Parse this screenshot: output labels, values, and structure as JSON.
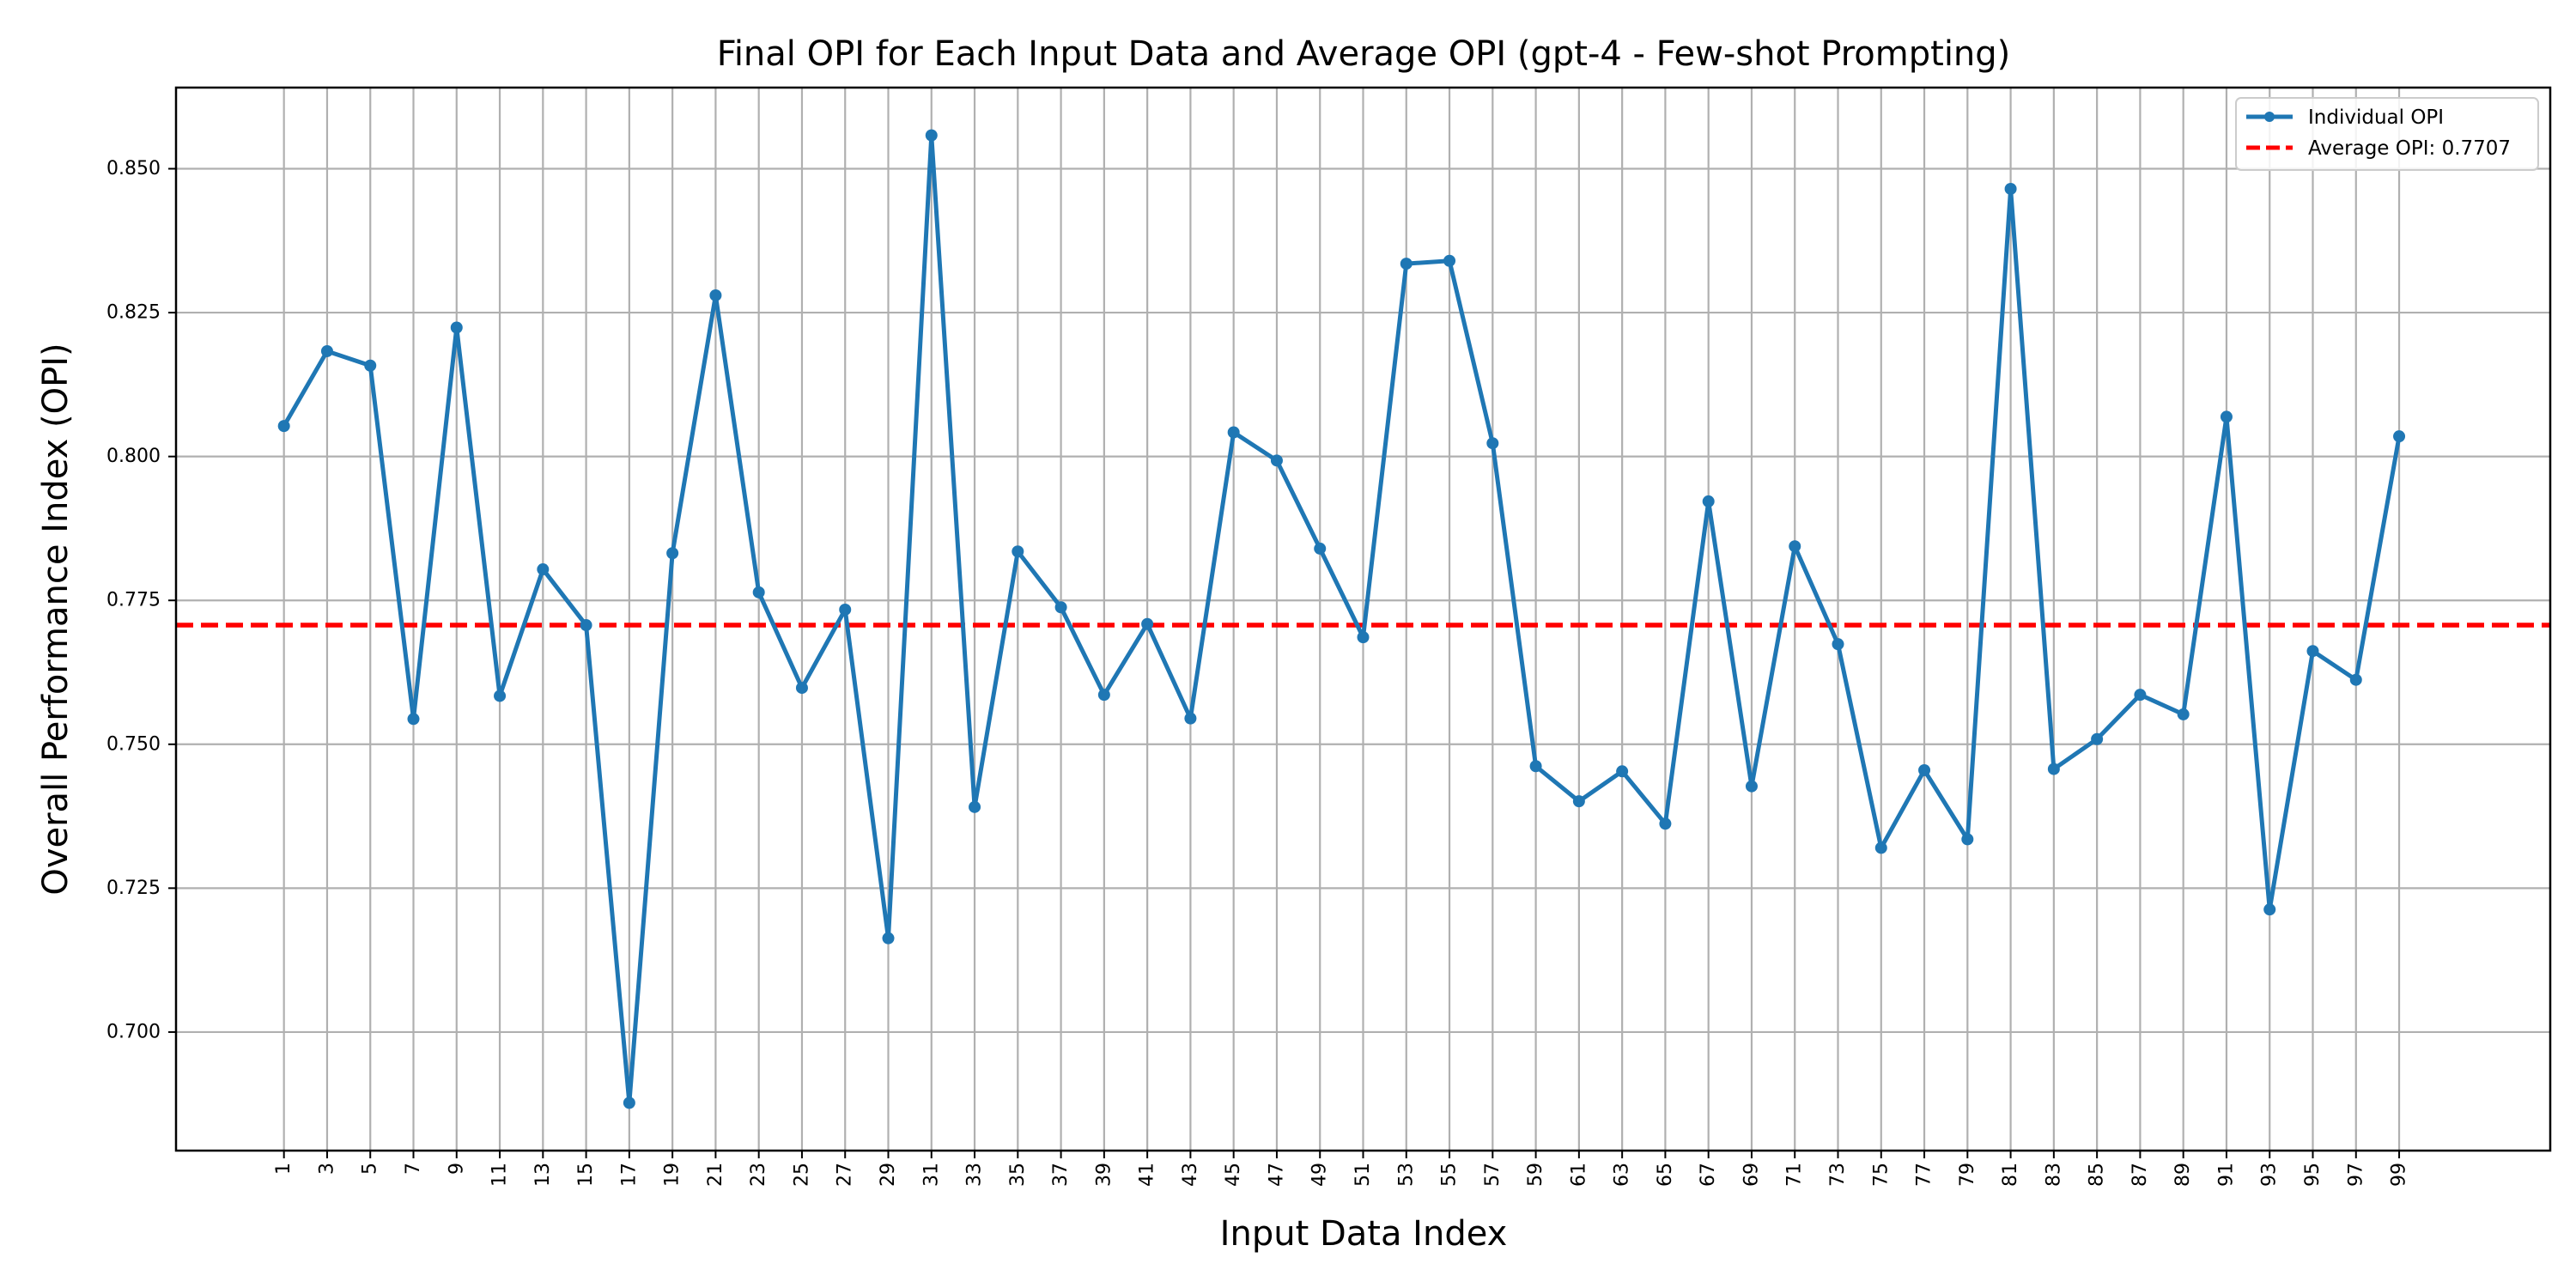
{
  "chart_data": {
    "type": "line",
    "title": "Final OPI for Each Input Data and Average OPI (gpt-4 - Few-shot Prompting)",
    "xlabel": "Input Data Index",
    "ylabel": "Overall Performance Index (OPI)",
    "x": [
      1,
      3,
      5,
      7,
      9,
      11,
      13,
      15,
      17,
      19,
      21,
      23,
      25,
      27,
      29,
      31,
      33,
      35,
      37,
      39,
      41,
      43,
      45,
      47,
      49,
      51,
      53,
      55,
      57,
      59,
      61,
      63,
      65,
      67,
      69,
      71,
      73,
      75,
      77,
      79,
      81,
      83,
      85,
      87,
      89,
      91,
      93,
      95,
      97,
      99
    ],
    "series": [
      {
        "name": "Individual OPI",
        "color": "#1f77b4",
        "values": [
          0.8053,
          0.8183,
          0.8158,
          0.7544,
          0.8224,
          0.7584,
          0.7804,
          0.7707,
          0.6877,
          0.7832,
          0.828,
          0.7764,
          0.7598,
          0.7734,
          0.7163,
          0.8558,
          0.7391,
          0.7835,
          0.7738,
          0.7586,
          0.7709,
          0.7545,
          0.8042,
          0.7993,
          0.784,
          0.7686,
          0.8335,
          0.834,
          0.8023,
          0.7462,
          0.7401,
          0.7453,
          0.7362,
          0.7922,
          0.7427,
          0.7844,
          0.7674,
          0.732,
          0.7455,
          0.7335,
          0.8465,
          0.7457,
          0.7509,
          0.7586,
          0.7552,
          0.8069,
          0.7213,
          0.7662,
          0.7612,
          0.8035
        ]
      }
    ],
    "average": {
      "label": "Average OPI: 0.7707",
      "value": 0.7707,
      "color": "#ff0000"
    },
    "xticks": [
      "1",
      "3",
      "5",
      "7",
      "9",
      "11",
      "13",
      "15",
      "17",
      "19",
      "21",
      "23",
      "25",
      "27",
      "29",
      "31",
      "33",
      "35",
      "37",
      "39",
      "41",
      "43",
      "45",
      "47",
      "49",
      "51",
      "53",
      "55",
      "57",
      "59",
      "61",
      "63",
      "65",
      "67",
      "69",
      "71",
      "73",
      "75",
      "77",
      "79",
      "81",
      "83",
      "85",
      "87",
      "89",
      "91",
      "93",
      "95",
      "97",
      "99"
    ],
    "yticks": [
      "0.700",
      "0.725",
      "0.750",
      "0.775",
      "0.800",
      "0.825",
      "0.850"
    ],
    "xlim": [
      -4.0,
      106.0
    ],
    "ylim": [
      0.6794,
      0.8641
    ],
    "grid": true,
    "legend_position": "top-right"
  }
}
